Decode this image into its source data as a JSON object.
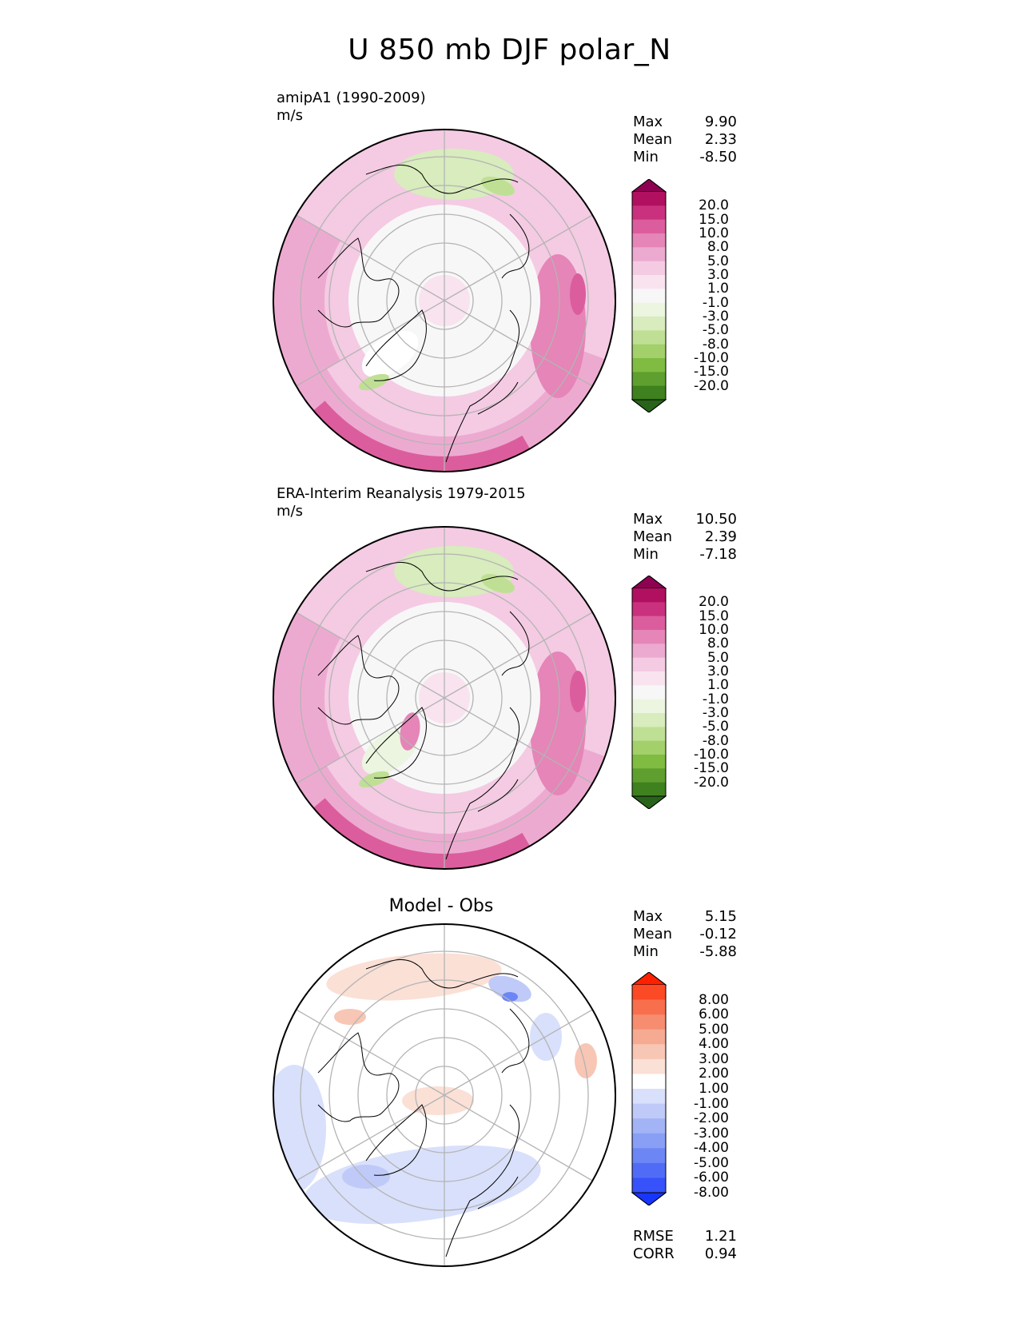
{
  "title": "U 850 mb DJF polar_N",
  "panels": [
    {
      "id": "model",
      "label": "amipA1 (1990-2009)",
      "units": "m/s",
      "stats": {
        "max_label": "Max",
        "max": "9.90",
        "mean_label": "Mean",
        "mean": "2.33",
        "min_label": "Min",
        "min": "-8.50"
      },
      "colorbar_id": "fill"
    },
    {
      "id": "obs",
      "label": "ERA-Interim Reanalysis 1979-2015",
      "units": "m/s",
      "stats": {
        "max_label": "Max",
        "max": "10.50",
        "mean_label": "Mean",
        "mean": "2.39",
        "min_label": "Min",
        "min": "-7.18"
      },
      "colorbar_id": "fill"
    },
    {
      "id": "diff",
      "title": "Model - Obs",
      "stats": {
        "max_label": "Max",
        "max": "5.15",
        "mean_label": "Mean",
        "mean": "-0.12",
        "min_label": "Min",
        "min": "-5.88"
      },
      "metrics": {
        "rmse_label": "RMSE",
        "rmse": "1.21",
        "corr_label": "CORR",
        "corr": "0.94"
      },
      "colorbar_id": "diff"
    }
  ],
  "colorbars": {
    "fill": {
      "labels": [
        "20.0",
        "15.0",
        "10.0",
        "8.0",
        "5.0",
        "3.0",
        "1.0",
        "-1.0",
        "-3.0",
        "-5.0",
        "-8.0",
        "-10.0",
        "-15.0",
        "-20.0"
      ],
      "colors": [
        "#8e0152",
        "#b0105f",
        "#c9317f",
        "#dc5d9d",
        "#e585b8",
        "#edaad0",
        "#f4cbe3",
        "#f9e3ef",
        "#f7f7f7",
        "#ecf5df",
        "#d8ecbd",
        "#bfe094",
        "#a3d06b",
        "#7fbc41",
        "#5e9f2f",
        "#3f801f",
        "#276419"
      ]
    },
    "diff": {
      "labels": [
        "8.00",
        "6.00",
        "5.00",
        "4.00",
        "3.00",
        "2.00",
        "1.00",
        "-1.00",
        "-2.00",
        "-3.00",
        "-4.00",
        "-5.00",
        "-6.00",
        "-8.00"
      ],
      "colors": [
        "#ff2000",
        "#fb4a25",
        "#f86f4d",
        "#f68d70",
        "#f6aa92",
        "#f8c6b4",
        "#fbe0d6",
        "#ffffff",
        "#d9e0fb",
        "#bfcaf8",
        "#a3b4f6",
        "#889ff5",
        "#6c86f5",
        "#506cf7",
        "#3752fa",
        "#1635fd"
      ]
    }
  },
  "chart_data": [
    {
      "type": "heatmap",
      "title": "amipA1 (1990-2009)",
      "units": "m/s",
      "projection": "north polar stereographic",
      "variable": "U 850 mb DJF",
      "max": 9.9,
      "mean": 2.33,
      "min": -8.5,
      "levels": [
        -20,
        -15,
        -10,
        -8,
        -5,
        -3,
        -1,
        1,
        3,
        5,
        8,
        10,
        15,
        20
      ]
    },
    {
      "type": "heatmap",
      "title": "ERA-Interim Reanalysis 1979-2015",
      "units": "m/s",
      "projection": "north polar stereographic",
      "variable": "U 850 mb DJF",
      "max": 10.5,
      "mean": 2.39,
      "min": -7.18,
      "levels": [
        -20,
        -15,
        -10,
        -8,
        -5,
        -3,
        -1,
        1,
        3,
        5,
        8,
        10,
        15,
        20
      ]
    },
    {
      "type": "heatmap",
      "title": "Model - Obs",
      "projection": "north polar stereographic",
      "max": 5.15,
      "mean": -0.12,
      "min": -5.88,
      "rmse": 1.21,
      "corr": 0.94,
      "levels": [
        -8,
        -6,
        -5,
        -4,
        -3,
        -2,
        -1,
        1,
        2,
        3,
        4,
        5,
        6,
        8
      ]
    }
  ]
}
